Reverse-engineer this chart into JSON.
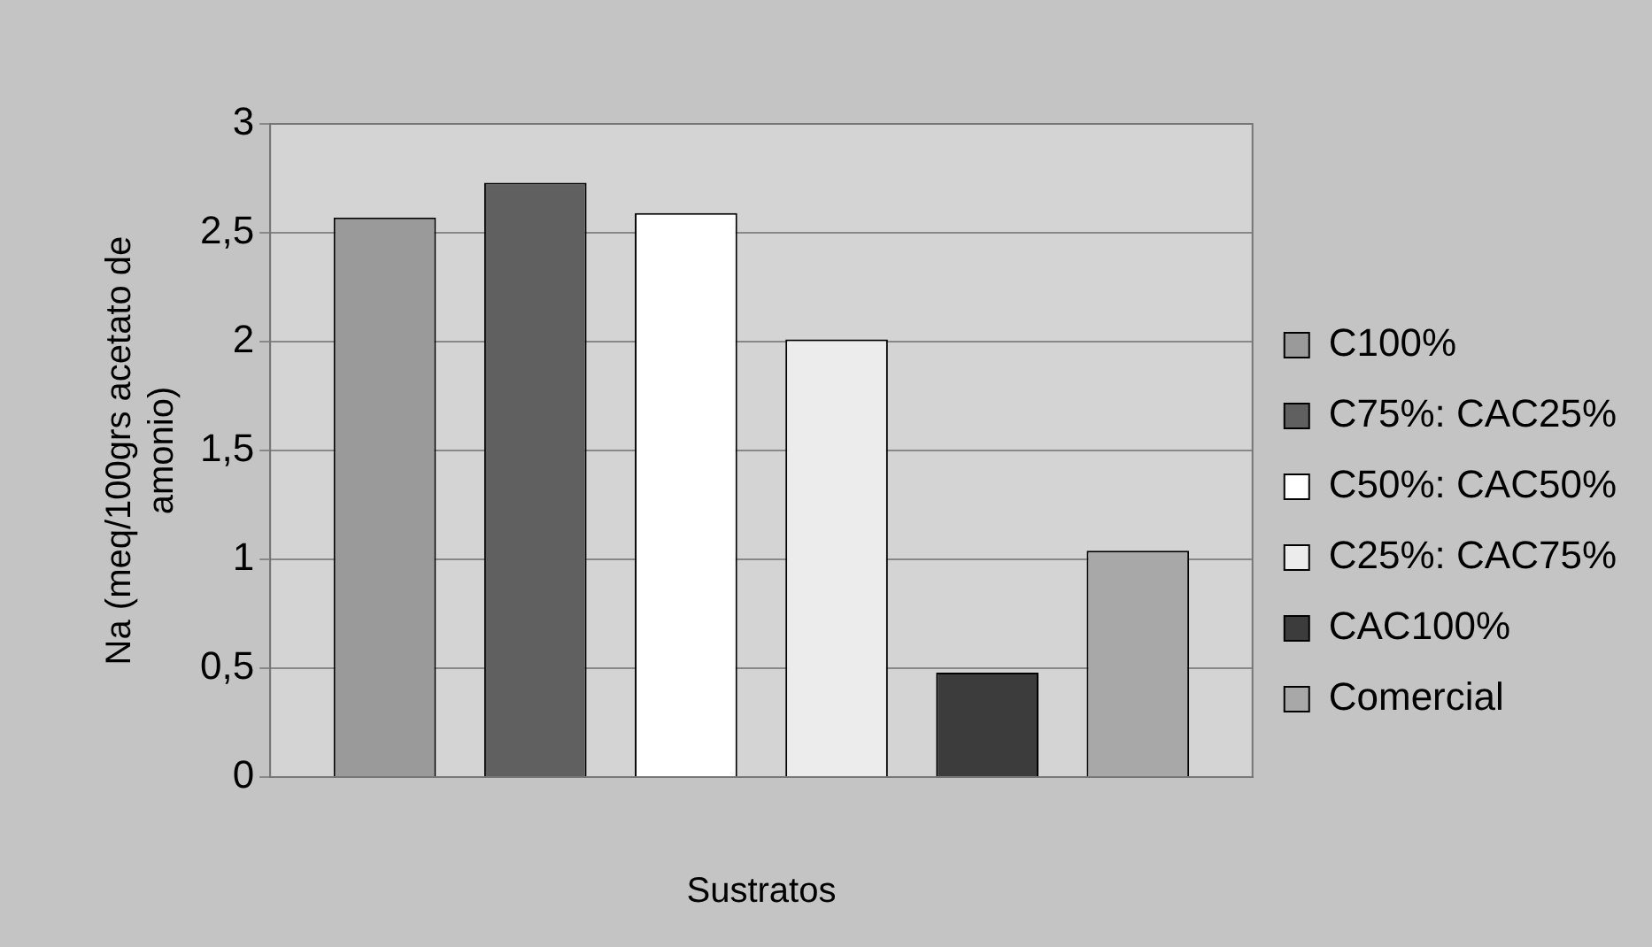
{
  "chart_data": {
    "type": "bar",
    "xlabel": "Sustratos",
    "ylabel": "Na (meq/100grs acetato de amonio)",
    "categories": [
      null
    ],
    "series": [
      {
        "name": "C100%",
        "color": "#9a9a9a",
        "values": [
          2.57
        ]
      },
      {
        "name": "C75%: CAC25%",
        "color": "#606060",
        "values": [
          2.73
        ]
      },
      {
        "name": "C50%: CAC50%",
        "color": "#ffffff",
        "values": [
          2.59
        ]
      },
      {
        "name": "C25%: CAC75%",
        "color": "#ececec",
        "values": [
          2.01
        ]
      },
      {
        "name": "CAC100%",
        "color": "#3c3c3c",
        "values": [
          0.48
        ]
      },
      {
        "name": "Comercial",
        "color": "#a8a8a8",
        "values": [
          1.04
        ]
      }
    ],
    "ylim": [
      0,
      3
    ],
    "yticks": [
      0,
      {
        "value": 0.5,
        "label": "0,5"
      },
      1,
      {
        "value": 1.5,
        "label": "1,5"
      },
      2,
      {
        "value": 2.5,
        "label": "2,5"
      },
      3
    ],
    "grid": "y",
    "legend": "right"
  }
}
